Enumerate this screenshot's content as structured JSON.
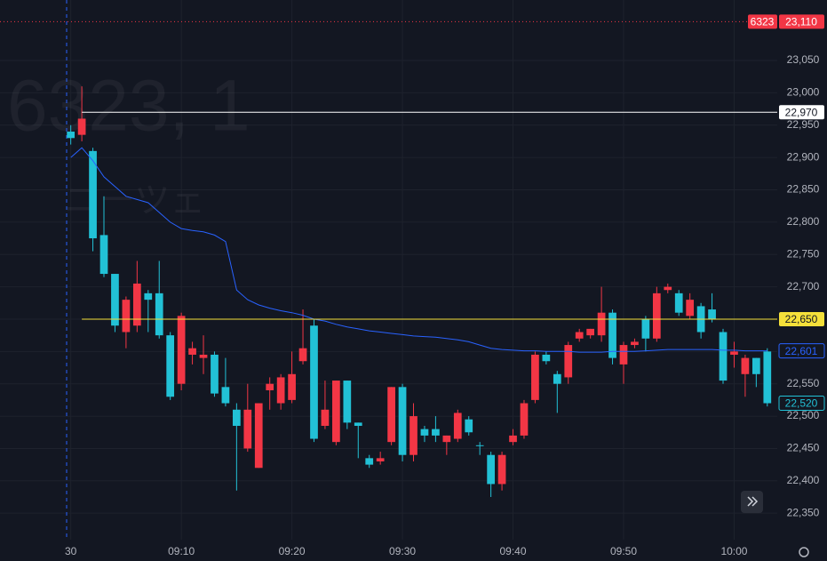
{
  "chart_data": {
    "type": "candlestick",
    "watermark": [
      "6323, 1",
      "ニーツェ"
    ],
    "x": [
      0,
      1,
      2,
      3,
      4,
      5,
      6,
      7,
      8,
      9,
      10,
      11,
      12,
      13,
      14,
      15,
      16,
      17,
      18,
      19,
      20,
      21,
      22,
      23,
      24,
      25,
      26,
      27,
      28,
      29,
      30,
      31,
      32,
      33,
      34,
      35,
      36,
      37,
      38,
      39,
      40,
      41,
      42,
      43,
      44,
      45,
      46,
      47,
      48,
      49,
      50,
      51,
      52,
      53,
      54,
      55,
      56,
      57,
      58,
      59,
      60,
      61,
      62,
      63
    ],
    "open": [
      22940,
      22935,
      22910,
      22780,
      22720,
      22630,
      22640,
      22690,
      22690,
      22625,
      22550,
      22595,
      22590,
      22595,
      22545,
      22510,
      22450,
      22420,
      22540,
      22520,
      22525,
      22585,
      22640,
      22485,
      22460,
      22555,
      22490,
      22435,
      22430,
      22460,
      22545,
      22440,
      22480,
      22480,
      22460,
      22465,
      22495,
      22455,
      22440,
      22395,
      22460,
      22470,
      22525,
      22595,
      22565,
      22560,
      22620,
      22625,
      22625,
      22660,
      22580,
      22610,
      22650,
      22620,
      22695,
      22690,
      22655,
      22670,
      22665,
      22630,
      22595,
      22565,
      22590,
      22600
    ],
    "high": [
      22950,
      23010,
      22915,
      22840,
      22720,
      22685,
      22740,
      22695,
      22740,
      22630,
      22660,
      22615,
      22625,
      22600,
      22590,
      22520,
      22550,
      22520,
      22560,
      22565,
      22600,
      22665,
      22650,
      22555,
      22555,
      22555,
      22490,
      22440,
      22445,
      22545,
      22550,
      22520,
      22485,
      22500,
      22470,
      22510,
      22500,
      22460,
      22445,
      22445,
      22480,
      22525,
      22600,
      22600,
      22570,
      22615,
      22635,
      22635,
      22700,
      22665,
      22615,
      22620,
      22655,
      22700,
      22705,
      22695,
      22690,
      22675,
      22690,
      22635,
      22615,
      22595,
      22590,
      22605
    ],
    "low": [
      22920,
      22925,
      22755,
      22715,
      22630,
      22605,
      22630,
      22630,
      22620,
      22525,
      22540,
      22580,
      22565,
      22530,
      22515,
      22385,
      22445,
      22420,
      22510,
      22510,
      22520,
      22580,
      22460,
      22480,
      22455,
      22480,
      22435,
      22420,
      22425,
      22455,
      22430,
      22430,
      22460,
      22460,
      22440,
      22460,
      22470,
      22440,
      22375,
      22385,
      22455,
      22465,
      22520,
      22580,
      22505,
      22550,
      22615,
      22620,
      22615,
      22580,
      22550,
      22605,
      22600,
      22615,
      22690,
      22655,
      22650,
      22620,
      22645,
      22550,
      22575,
      22530,
      22545,
      22515
    ],
    "close": [
      22930,
      22960,
      22775,
      22720,
      22640,
      22680,
      22705,
      22680,
      22625,
      22530,
      22655,
      22605,
      22595,
      22535,
      22520,
      22485,
      22510,
      22520,
      22550,
      22560,
      22565,
      22605,
      22465,
      22510,
      22555,
      22490,
      22485,
      22425,
      22435,
      22545,
      22440,
      22500,
      22470,
      22470,
      22470,
      22505,
      22475,
      22455,
      22395,
      22440,
      22470,
      22520,
      22595,
      22585,
      22550,
      22610,
      22630,
      22635,
      22660,
      22590,
      22610,
      22615,
      22620,
      22690,
      22700,
      22660,
      22680,
      22630,
      22650,
      22555,
      22600,
      22590,
      22565,
      22520
    ],
    "up_color": "#f23645",
    "down_color": "#22c1d6",
    "ma": {
      "color": "#2962ff",
      "values": [
        22900,
        22915,
        22895,
        22870,
        22855,
        22840,
        22835,
        22830,
        22815,
        22800,
        22790,
        22787,
        22785,
        22780,
        22770,
        22695,
        22680,
        22672,
        22667,
        22663,
        22660,
        22656,
        22650,
        22647,
        22642,
        22638,
        22635,
        22632,
        22630,
        22628,
        22626,
        22624,
        22623,
        22622,
        22620,
        22618,
        22615,
        22610,
        22605,
        22603,
        22602,
        22601,
        22601,
        22600,
        22600,
        22600,
        22599,
        22599,
        22599,
        22600,
        22600,
        22600,
        22601,
        22602,
        22603,
        22603,
        22603,
        22603,
        22603,
        22602,
        22602,
        22601,
        22601,
        22601
      ]
    },
    "xlim": [
      -6.4,
      63.9
    ],
    "ylim": [
      22309,
      23143.5
    ],
    "xticks": [
      {
        "value": 0,
        "label": "30"
      },
      {
        "value": 10,
        "label": "09:10"
      },
      {
        "value": 20,
        "label": "09:20"
      },
      {
        "value": 30,
        "label": "09:30"
      },
      {
        "value": 40,
        "label": "09:40"
      },
      {
        "value": 50,
        "label": "09:50"
      },
      {
        "value": 60,
        "label": "10:00"
      }
    ],
    "yticks": [
      {
        "value": 22350,
        "label": "22,350"
      },
      {
        "value": 22400,
        "label": "22,400"
      },
      {
        "value": 22450,
        "label": "22,450"
      },
      {
        "value": 22500,
        "label": "22,500"
      },
      {
        "value": 22550,
        "label": "22,550"
      },
      {
        "value": 22600,
        "label": "22,600"
      },
      {
        "value": 22650,
        "label": "22,650"
      },
      {
        "value": 22700,
        "label": "22,700"
      },
      {
        "value": 22750,
        "label": "22,750"
      },
      {
        "value": 22800,
        "label": "22,800"
      },
      {
        "value": 22850,
        "label": "22,850"
      },
      {
        "value": 22900,
        "label": "22,900"
      },
      {
        "value": 22950,
        "label": "22,950"
      },
      {
        "value": 23000,
        "label": "23,000"
      },
      {
        "value": 23050,
        "label": "23,050"
      }
    ],
    "price_lines": [
      {
        "value": 23110,
        "label": "23,110",
        "symbol": "6323",
        "color": "#f23645",
        "style": "dotted"
      },
      {
        "value": 22970,
        "label": "22,970",
        "color": "#ffffff",
        "style": "solid"
      },
      {
        "value": 22650,
        "label": "22,650",
        "color": "#f5e03a",
        "style": "solid"
      }
    ],
    "price_tags": [
      {
        "value": 22601,
        "label": "22,601",
        "color": "#2962ff"
      },
      {
        "value": 22520,
        "label": "22,520",
        "color": "#22c1d6"
      }
    ],
    "grid": true
  }
}
